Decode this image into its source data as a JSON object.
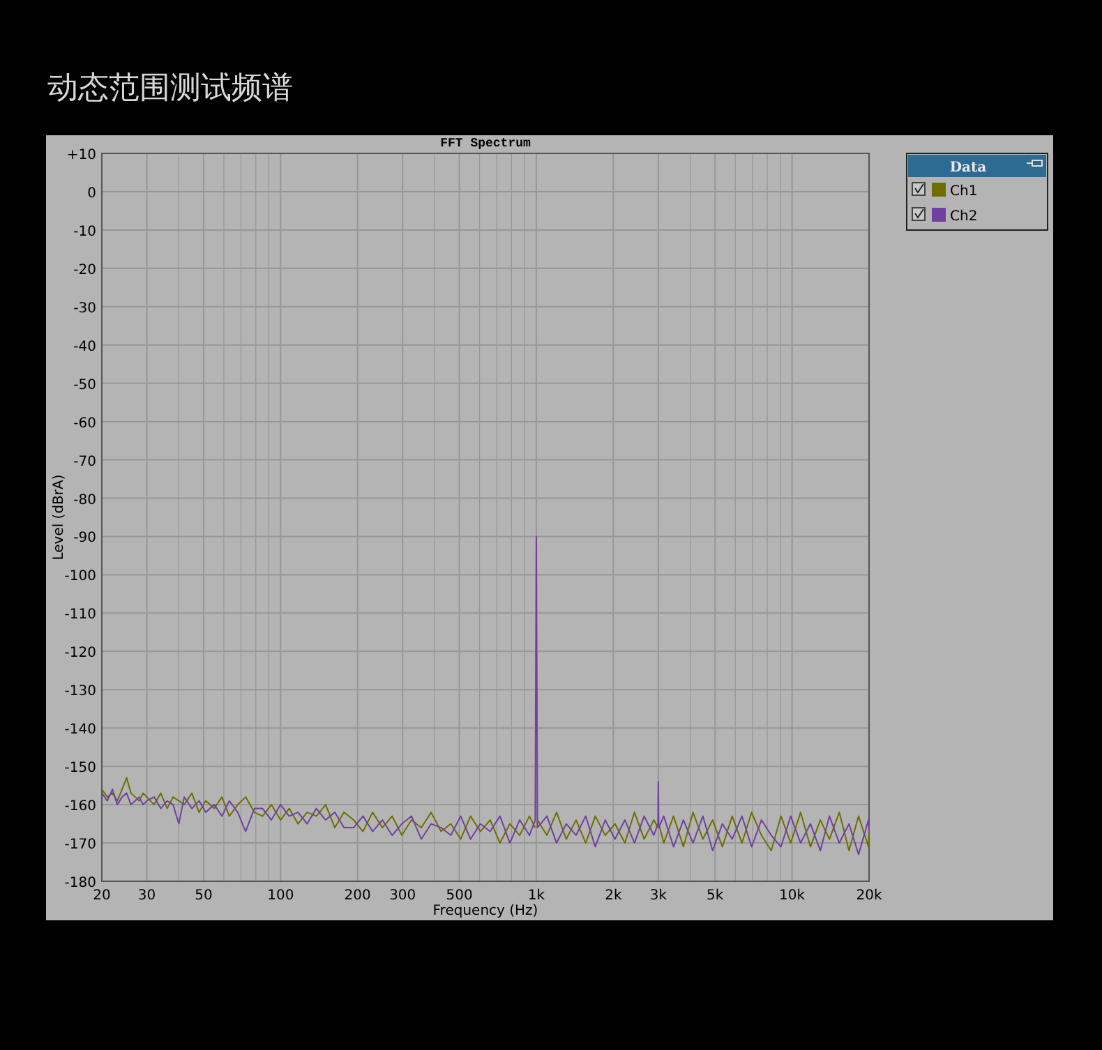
{
  "chart_data": {
    "type": "line",
    "title": "动态范围测试频谱",
    "subtitle": "FFT Spectrum",
    "xlabel": "Frequency (Hz)",
    "ylabel": "Level (dBrA)",
    "legend_title": "Data",
    "legend": "top right",
    "grid": true,
    "log": "x",
    "xlim": [
      20,
      20000
    ],
    "ylim": [
      -180,
      10
    ],
    "xticks": [
      20,
      30,
      {
        "value": 40,
        "label": null
      },
      50,
      {
        "value": 60,
        "label": null
      },
      {
        "value": 70,
        "label": null
      },
      {
        "value": 80,
        "label": null
      },
      {
        "value": 90,
        "label": null
      },
      100,
      200,
      300,
      {
        "value": 400,
        "label": null
      },
      500,
      {
        "value": 600,
        "label": null
      },
      {
        "value": 700,
        "label": null
      },
      {
        "value": 800,
        "label": null
      },
      {
        "value": 900,
        "label": null
      },
      {
        "value": 1000,
        "label": "1k"
      },
      {
        "value": 2000,
        "label": "2k"
      },
      {
        "value": 3000,
        "label": "3k"
      },
      {
        "value": 4000,
        "label": null
      },
      {
        "value": 5000,
        "label": "5k"
      },
      {
        "value": 6000,
        "label": null
      },
      {
        "value": 7000,
        "label": null
      },
      {
        "value": 8000,
        "label": null
      },
      {
        "value": 9000,
        "label": null
      },
      {
        "value": 10000,
        "label": "10k"
      },
      {
        "value": 20000,
        "label": "20k"
      }
    ],
    "yticks": [
      {
        "value": 10,
        "label": "+10"
      },
      0,
      -10,
      -20,
      -30,
      -40,
      -50,
      -60,
      -70,
      -80,
      -90,
      -100,
      -110,
      -120,
      -130,
      -140,
      -150,
      -160,
      -170,
      -180
    ],
    "x": [
      20,
      21,
      22,
      23,
      24,
      25,
      26,
      27,
      28,
      29,
      30,
      32,
      34,
      36,
      38,
      40,
      42,
      45,
      48,
      51,
      55,
      59,
      63,
      68,
      73,
      79,
      85,
      92,
      100,
      108,
      117,
      127,
      138,
      150,
      163,
      177,
      193,
      210,
      229,
      250,
      273,
      298,
      325,
      355,
      388,
      424,
      463,
      506,
      553,
      604,
      660,
      721,
      788,
      861,
      940,
      990,
      1000,
      1010,
      1100,
      1200,
      1310,
      1430,
      1560,
      1700,
      1860,
      2030,
      2220,
      2420,
      2640,
      2880,
      2990,
      3000,
      3010,
      3150,
      3440,
      3760,
      4100,
      4480,
      4890,
      5340,
      5830,
      6370,
      6950,
      7590,
      8290,
      9050,
      9880,
      10800,
      11800,
      12900,
      14000,
      15300,
      16700,
      18200,
      19900,
      20000
    ],
    "series": [
      {
        "name": "Ch1",
        "color": "#6e6e00",
        "values": [
          -156,
          -158,
          -157,
          -159,
          -156,
          -153,
          -157,
          -158,
          -159,
          -157,
          -158,
          -160,
          -157,
          -161,
          -158,
          -159,
          -160,
          -157,
          -162,
          -159,
          -161,
          -158,
          -163,
          -160,
          -158,
          -162,
          -163,
          -160,
          -164,
          -161,
          -165,
          -162,
          -163,
          -160,
          -166,
          -162,
          -164,
          -167,
          -162,
          -166,
          -163,
          -168,
          -164,
          -166,
          -162,
          -167,
          -165,
          -169,
          -163,
          -167,
          -164,
          -170,
          -165,
          -168,
          -163,
          -166,
          null,
          -164,
          -168,
          -162,
          -169,
          -164,
          -170,
          -163,
          -168,
          -165,
          -170,
          -162,
          -169,
          -164,
          -166,
          null,
          -165,
          -170,
          -163,
          -171,
          -162,
          -169,
          -164,
          -171,
          -163,
          -170,
          -162,
          -168,
          -172,
          -163,
          -170,
          -162,
          -171,
          -164,
          -169,
          -162,
          -172,
          -163,
          -171,
          -166
        ]
      },
      {
        "name": "Ch2",
        "color": "#7040a0",
        "values": [
          -157,
          -159,
          -156,
          -160,
          -158,
          -157,
          -160,
          -159,
          -158,
          -160,
          -159,
          -158,
          -161,
          -159,
          -160,
          -165,
          -158,
          -161,
          -159,
          -162,
          -160,
          -163,
          -159,
          -162,
          -167,
          -161,
          -161,
          -164,
          -160,
          -163,
          -162,
          -165,
          -161,
          -164,
          -162,
          -166,
          -166,
          -163,
          -167,
          -164,
          -168,
          -165,
          -163,
          -169,
          -165,
          -166,
          -168,
          -163,
          -169,
          -165,
          -167,
          -163,
          -170,
          -164,
          -168,
          -164,
          -90,
          -166,
          -163,
          -170,
          -165,
          -168,
          -163,
          -171,
          -164,
          -169,
          -164,
          -170,
          -163,
          -168,
          -165,
          -154,
          -166,
          -163,
          -171,
          -164,
          -170,
          -163,
          -172,
          -165,
          -169,
          -163,
          -171,
          -164,
          -168,
          -171,
          -163,
          -170,
          -165,
          -172,
          -163,
          -170,
          -165,
          -173,
          -164,
          -167
        ]
      }
    ]
  }
}
